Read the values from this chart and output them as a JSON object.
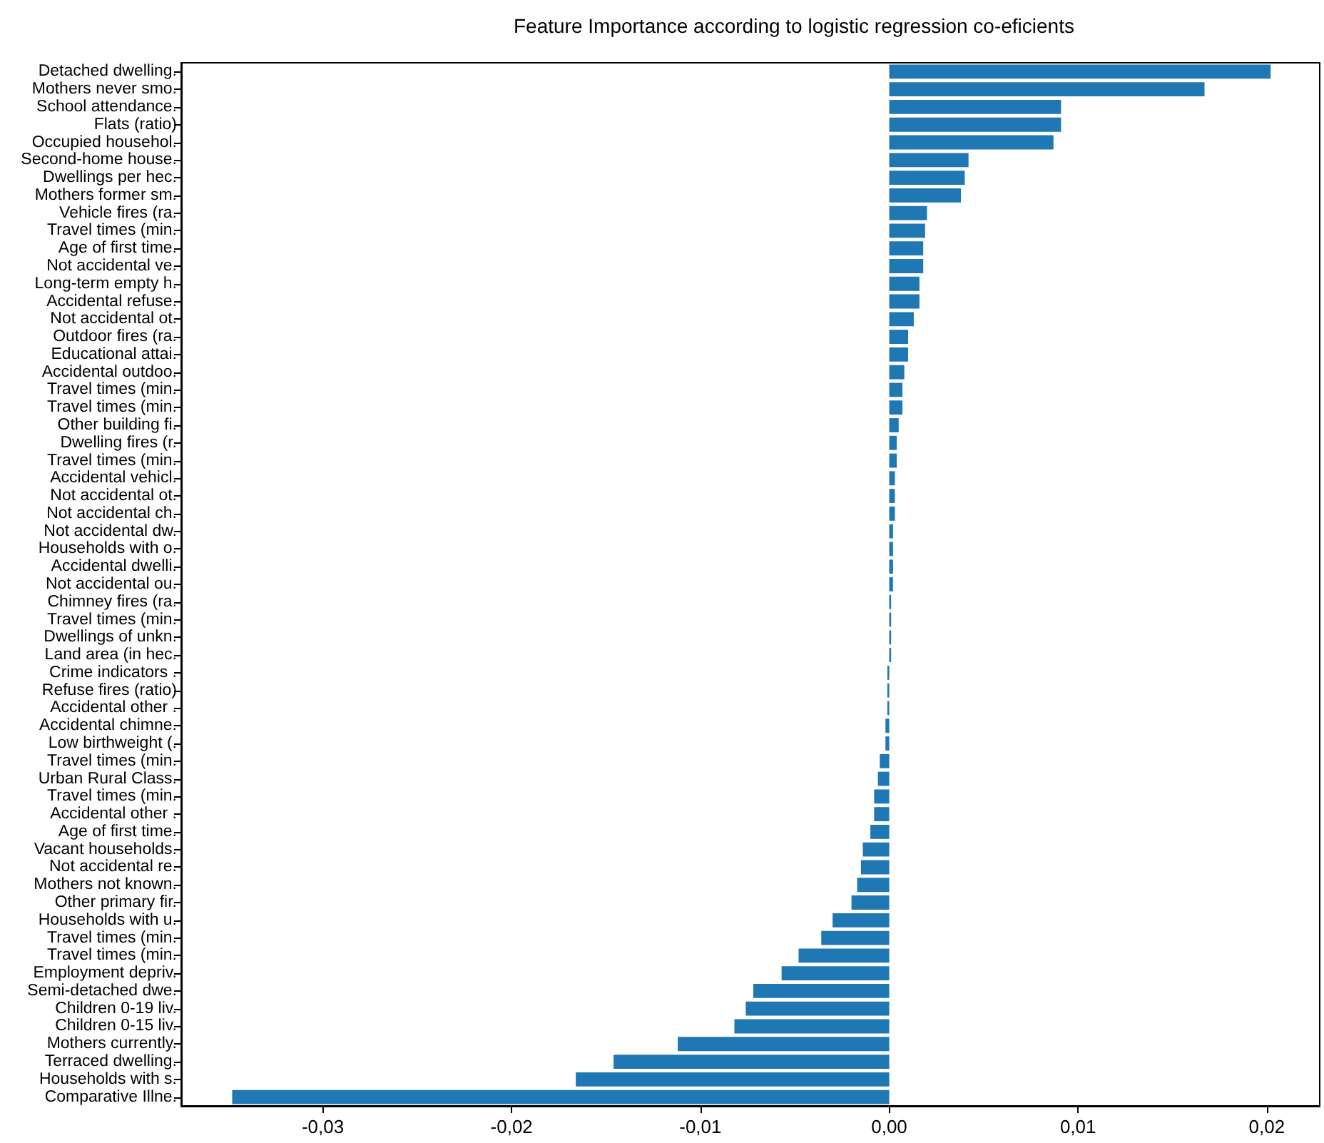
{
  "chart_data": {
    "type": "bar",
    "orientation": "horizontal",
    "title": "Feature Importance according to logistic regression co-eficients",
    "categories": [
      "Detached dwelling.",
      "Mothers never smo.",
      "School attendance.",
      "Flats (ratio)",
      "Occupied househol.",
      "Second-home house.",
      "Dwellings per hec.",
      "Mothers former sm.",
      "Vehicle fires (ra.",
      "Travel times (min.",
      "Age of first time.",
      "Not accidental ve.",
      "Long-term empty h.",
      "Accidental refuse.",
      "Not accidental ot.",
      "Outdoor fires (ra.",
      "Educational attai.",
      "Accidental outdoo.",
      "Travel times (min.",
      "Travel times (min.",
      "Other building fi.",
      "Dwelling fires (r.",
      "Travel times (min.",
      "Accidental vehicl.",
      "Not accidental ot.",
      "Not accidental ch.",
      "Not accidental dw.",
      "Households with o.",
      "Accidental dwelli.",
      "Not accidental ou.",
      "Chimney fires (ra.",
      "Travel times (min.",
      "Dwellings of unkn.",
      "Land area (in hec.",
      "Crime indicators .",
      "Refuse fires (ratio)",
      "Accidental other .",
      "Accidental chimne.",
      "Low birthweight (.",
      "Travel times (min.",
      "Urban Rural Class.",
      "Travel times (min.",
      "Accidental other .",
      "Age of first time.",
      "Vacant households.",
      "Not accidental re.",
      "Mothers not known.",
      "Other primary fir.",
      "Households with u.",
      "Travel times (min.",
      "Travel times (min.",
      "Employment depriv.",
      "Semi-detached dwe.",
      "Children 0-19 liv.",
      "Children 0-15 liv.",
      "Mothers currently.",
      "Terraced dwelling.",
      "Households with s.",
      "Comparative Illne."
    ],
    "values": [
      0.0202,
      0.0167,
      0.0091,
      0.0091,
      0.0087,
      0.0042,
      0.004,
      0.0038,
      0.002,
      0.0019,
      0.0018,
      0.0018,
      0.0016,
      0.0016,
      0.0013,
      0.001,
      0.001,
      0.0008,
      0.0007,
      0.0007,
      0.0005,
      0.0004,
      0.0004,
      0.0003,
      0.0003,
      0.0003,
      0.0002,
      0.0002,
      0.0002,
      0.0002,
      0.0001,
      0.0001,
      0.0001,
      0.0001,
      -0.0001,
      -0.0001,
      -0.0001,
      -0.0002,
      -0.0002,
      -0.0005,
      -0.0006,
      -0.0008,
      -0.0008,
      -0.001,
      -0.0014,
      -0.0015,
      -0.0017,
      -0.002,
      -0.003,
      -0.0036,
      -0.0048,
      -0.0057,
      -0.0072,
      -0.0076,
      -0.0082,
      -0.0112,
      -0.0146,
      -0.0166,
      -0.0348
    ],
    "color": "#1f77b4",
    "xlim": [
      -0.0375,
      0.0228
    ],
    "xticks": [
      {
        "value": -0.03,
        "label": "-0,03"
      },
      {
        "value": -0.02,
        "label": "-0,02"
      },
      {
        "value": -0.01,
        "label": "-0,01"
      },
      {
        "value": 0,
        "label": "0,00"
      },
      {
        "value": 0.01,
        "label": "0,01"
      },
      {
        "value": 0.02,
        "label": "0,02"
      }
    ],
    "grid": false
  }
}
